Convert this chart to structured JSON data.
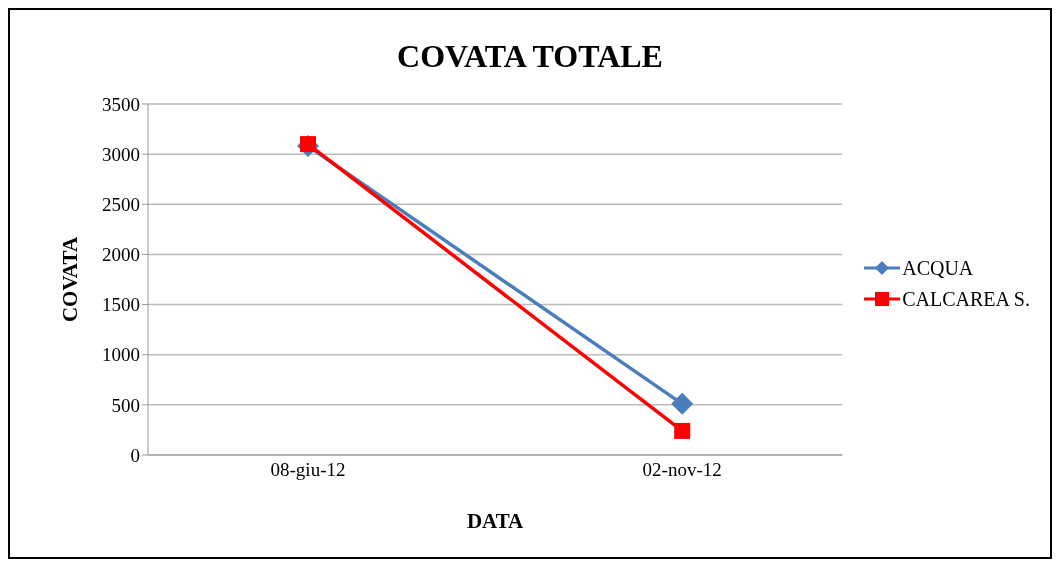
{
  "chart_data": {
    "type": "line",
    "title": "COVATA TOTALE",
    "xlabel": "DATA",
    "ylabel": "COVATA",
    "categories": [
      "08-giu-12",
      "02-nov-12"
    ],
    "series": [
      {
        "name": "ACQUA",
        "color": "#4a7ebb",
        "values": [
          3080,
          510
        ],
        "marker": "diamond"
      },
      {
        "name": "CALCAREA S.",
        "color": "#ff0000",
        "values": [
          3100,
          240
        ],
        "marker": "square"
      }
    ],
    "ylim": [
      0,
      3500
    ],
    "yticks": [
      0,
      500,
      1000,
      1500,
      2000,
      2500,
      3000,
      3500
    ],
    "grid": "y",
    "legend": "right"
  }
}
